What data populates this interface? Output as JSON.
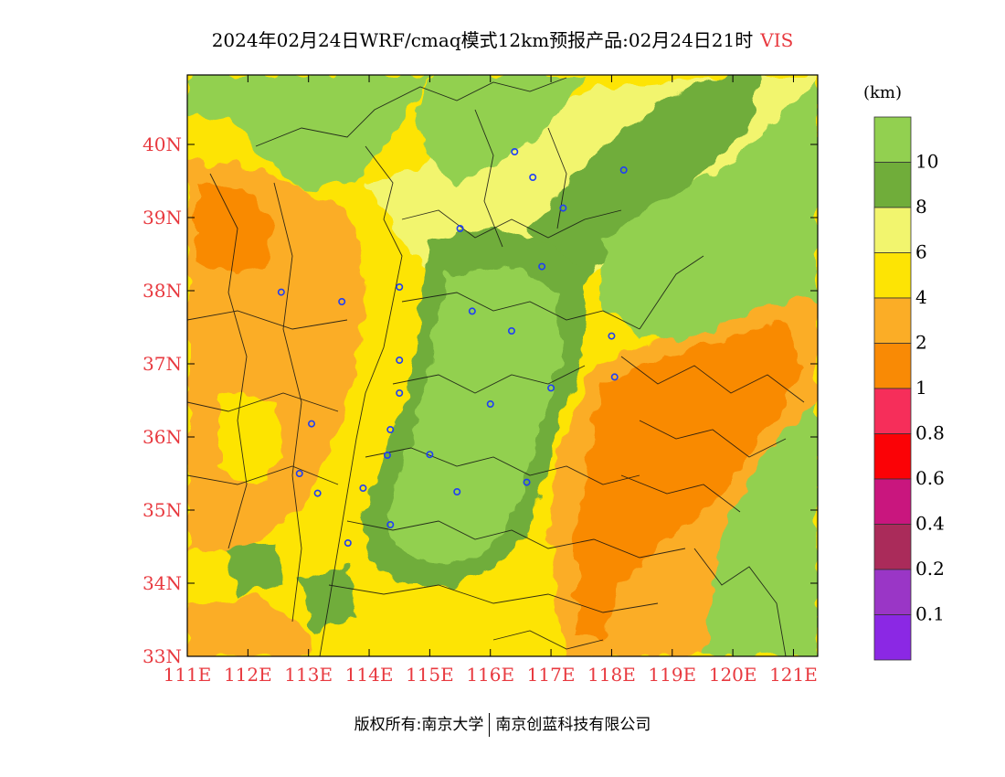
{
  "title": {
    "main": "2024年02月24日WRF/cmaq模式12km预报产品:02月24日21时",
    "variable": "VIS"
  },
  "unit_label": "(km)",
  "axes": {
    "x_ticks": [
      "111E",
      "112E",
      "113E",
      "114E",
      "115E",
      "116E",
      "117E",
      "118E",
      "119E",
      "120E",
      "121E"
    ],
    "y_ticks": [
      "33N",
      "34N",
      "35N",
      "36N",
      "37N",
      "38N",
      "39N",
      "40N"
    ],
    "x_range": [
      111,
      121.4
    ],
    "y_range": [
      33,
      40.95
    ]
  },
  "colorbar": {
    "levels": [
      {
        "color": "#92d050",
        "label": "10"
      },
      {
        "color": "#70ad3a",
        "label": "8"
      },
      {
        "color": "#f2f56e",
        "label": "6"
      },
      {
        "color": "#fde404",
        "label": "4"
      },
      {
        "color": "#fbad26",
        "label": "2"
      },
      {
        "color": "#f98a05",
        "label": "1"
      },
      {
        "color": "#f62e5a",
        "label": "0.8"
      },
      {
        "color": "#fb0206",
        "label": "0.6"
      },
      {
        "color": "#c9167e",
        "label": "0.4"
      },
      {
        "color": "#aa2b5a",
        "label": "0.2"
      },
      {
        "color": "#9a36c6",
        "label": "0.1"
      },
      {
        "color": "#8b28e4",
        "label": ""
      }
    ]
  },
  "stations": [
    {
      "lon": 116.4,
      "lat": 39.9
    },
    {
      "lon": 116.7,
      "lat": 39.55
    },
    {
      "lon": 117.2,
      "lat": 39.13
    },
    {
      "lon": 118.2,
      "lat": 39.65
    },
    {
      "lon": 115.5,
      "lat": 38.85
    },
    {
      "lon": 116.85,
      "lat": 38.33
    },
    {
      "lon": 114.5,
      "lat": 38.05
    },
    {
      "lon": 112.55,
      "lat": 37.98
    },
    {
      "lon": 113.55,
      "lat": 37.85
    },
    {
      "lon": 115.7,
      "lat": 37.72
    },
    {
      "lon": 116.35,
      "lat": 37.45
    },
    {
      "lon": 118.0,
      "lat": 37.38
    },
    {
      "lon": 114.5,
      "lat": 37.05
    },
    {
      "lon": 118.05,
      "lat": 36.82
    },
    {
      "lon": 117.0,
      "lat": 36.67
    },
    {
      "lon": 114.5,
      "lat": 36.6
    },
    {
      "lon": 116.0,
      "lat": 36.45
    },
    {
      "lon": 114.35,
      "lat": 36.1
    },
    {
      "lon": 113.05,
      "lat": 36.18
    },
    {
      "lon": 115.0,
      "lat": 35.76
    },
    {
      "lon": 114.3,
      "lat": 35.75
    },
    {
      "lon": 112.85,
      "lat": 35.5
    },
    {
      "lon": 116.6,
      "lat": 35.38
    },
    {
      "lon": 113.9,
      "lat": 35.3
    },
    {
      "lon": 113.15,
      "lat": 35.23
    },
    {
      "lon": 115.45,
      "lat": 35.25
    },
    {
      "lon": 114.35,
      "lat": 34.8
    },
    {
      "lon": 113.65,
      "lat": 34.55
    }
  ],
  "footer": {
    "left": "版权所有:南京大学",
    "right": "南京创蓝科技有限公司"
  }
}
